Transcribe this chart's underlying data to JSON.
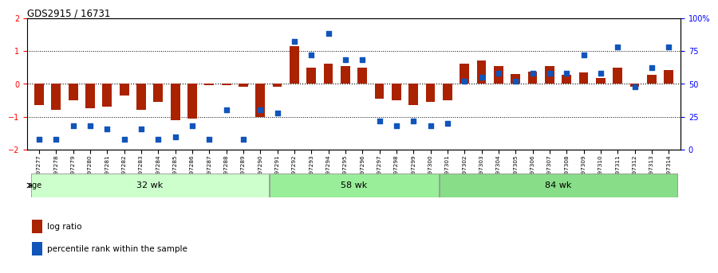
{
  "title": "GDS2915 / 16731",
  "samples": [
    "GSM97277",
    "GSM97278",
    "GSM97279",
    "GSM97280",
    "GSM97281",
    "GSM97282",
    "GSM97283",
    "GSM97284",
    "GSM97285",
    "GSM97286",
    "GSM97287",
    "GSM97288",
    "GSM97289",
    "GSM97290",
    "GSM97291",
    "GSM97292",
    "GSM97293",
    "GSM97294",
    "GSM97295",
    "GSM97296",
    "GSM97297",
    "GSM97298",
    "GSM97299",
    "GSM97300",
    "GSM97301",
    "GSM97302",
    "GSM97303",
    "GSM97304",
    "GSM97305",
    "GSM97306",
    "GSM97307",
    "GSM97308",
    "GSM97309",
    "GSM97310",
    "GSM97311",
    "GSM97312",
    "GSM97313",
    "GSM97314"
  ],
  "log_ratio": [
    -0.65,
    -0.8,
    -0.5,
    -0.75,
    -0.7,
    -0.35,
    -0.8,
    -0.55,
    -1.1,
    -1.05,
    -0.05,
    -0.05,
    -0.1,
    -1.0,
    -0.1,
    1.15,
    0.5,
    0.6,
    0.55,
    0.5,
    -0.45,
    -0.5,
    -0.65,
    -0.55,
    -0.5,
    0.6,
    0.7,
    0.55,
    0.3,
    0.38,
    0.55,
    0.28,
    0.35,
    0.18,
    0.5,
    -0.08,
    0.28,
    0.42
  ],
  "percentile": [
    8,
    8,
    18,
    18,
    16,
    8,
    16,
    8,
    10,
    18,
    8,
    30,
    8,
    30,
    28,
    82,
    72,
    88,
    68,
    68,
    22,
    18,
    22,
    18,
    20,
    52,
    55,
    58,
    52,
    58,
    58,
    58,
    72,
    58,
    78,
    48,
    62,
    78
  ],
  "groups": [
    {
      "label": "32 wk",
      "start": 0,
      "end": 14,
      "color": "#ccffcc"
    },
    {
      "label": "58 wk",
      "start": 14,
      "end": 24,
      "color": "#99ee99"
    },
    {
      "label": "84 wk",
      "start": 24,
      "end": 38,
      "color": "#88dd88"
    }
  ],
  "bar_color": "#aa2200",
  "dot_color": "#1155bb",
  "ylim": [
    -2,
    2
  ],
  "yticks_left": [
    -2,
    -1,
    0,
    1,
    2
  ],
  "yticks_right": [
    0,
    25,
    50,
    75,
    100
  ],
  "hlines": [
    -1,
    0,
    1
  ],
  "legend_items": [
    {
      "label": "log ratio",
      "color": "#aa2200"
    },
    {
      "label": "percentile rank within the sample",
      "color": "#1155bb"
    }
  ]
}
